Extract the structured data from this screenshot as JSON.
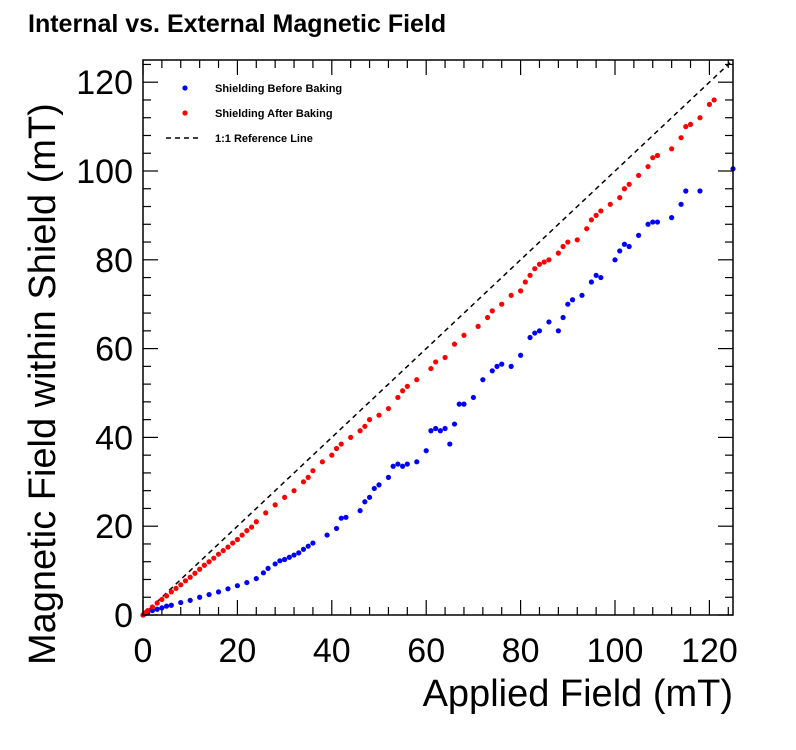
{
  "chart_data": {
    "type": "scatter",
    "title": "Internal vs. External  Magnetic Field",
    "xlabel": "Applied Field (mT)",
    "ylabel": "Magnetic Field within Shield (mT)",
    "xlim": [
      0,
      125
    ],
    "ylim": [
      0,
      125
    ],
    "xticks": [
      "0",
      "20",
      "40",
      "60",
      "80",
      "100",
      "120"
    ],
    "yticks": [
      "0",
      "20",
      "40",
      "60",
      "80",
      "100",
      "120"
    ],
    "grid": false,
    "legend_position": "top-left",
    "series": [
      {
        "name": "Shielding Before Baking",
        "color": "#0000ff",
        "marker": "circle",
        "x": [
          0,
          0.5,
          1,
          2,
          3,
          4,
          5,
          6,
          8,
          10,
          12,
          14,
          16,
          18,
          20,
          22,
          24,
          25.5,
          26.5,
          28,
          29,
          30,
          31,
          32,
          33,
          34,
          35,
          36,
          39,
          41,
          42,
          43,
          46,
          47,
          48,
          49,
          50,
          52,
          53,
          54,
          55,
          56,
          58,
          60,
          61,
          62,
          63,
          64,
          65,
          66,
          67,
          68,
          70,
          72,
          74,
          75,
          76,
          78,
          80,
          82,
          83,
          84,
          86,
          88,
          89,
          90,
          91,
          93,
          95,
          96,
          97,
          100,
          101,
          102,
          103,
          105,
          107,
          108,
          109,
          112,
          114,
          115,
          118,
          125
        ],
        "y": [
          0,
          0.3,
          0.5,
          1,
          1.3,
          1.6,
          2,
          2.2,
          2.8,
          3.3,
          4,
          4.6,
          5.2,
          5.9,
          6.6,
          7.3,
          8.2,
          9.5,
          10.5,
          11.5,
          12.2,
          12.5,
          13,
          13.5,
          14,
          14.8,
          15.5,
          16.2,
          18,
          19.5,
          21.8,
          22,
          23.5,
          25.5,
          26.5,
          28.5,
          29.3,
          31,
          33.5,
          34,
          33.5,
          34,
          34.5,
          37,
          41.5,
          42,
          41.5,
          42,
          38.5,
          43,
          47.5,
          47.5,
          49,
          53,
          55,
          56,
          56.5,
          56,
          58.5,
          62.5,
          63.5,
          64,
          66,
          64,
          67,
          70,
          71,
          72,
          75,
          76.5,
          76,
          80,
          82,
          83.5,
          83,
          85.5,
          88,
          88.5,
          88.5,
          89.5,
          92.5,
          95.5,
          95.5,
          100.5
        ]
      },
      {
        "name": "Shielding After Baking",
        "color": "#ff0000",
        "marker": "circle",
        "x": [
          0,
          0.5,
          1,
          2,
          3,
          4,
          5,
          6,
          7,
          8,
          9,
          10,
          11,
          12,
          13,
          14,
          15,
          16,
          17,
          18,
          19,
          20,
          21,
          22,
          23,
          24,
          26,
          28,
          30,
          32,
          34,
          35,
          36,
          38,
          40,
          41,
          42,
          44,
          46,
          47,
          48,
          50,
          52,
          54,
          55,
          56,
          58,
          61,
          62,
          64,
          66,
          68,
          71,
          73,
          74,
          76,
          78,
          80,
          81,
          82,
          83,
          84,
          85,
          86,
          88,
          89,
          90,
          92,
          94,
          95,
          96,
          97,
          99,
          101,
          102,
          103,
          105,
          107,
          108,
          109,
          112,
          114,
          115,
          116,
          118,
          120,
          121
        ],
        "y": [
          0,
          0.5,
          1,
          1.8,
          2.7,
          3.5,
          4.3,
          5.2,
          6,
          6.8,
          7.7,
          8.5,
          9.4,
          10.3,
          11.2,
          12,
          12.8,
          13.7,
          14.5,
          15.3,
          16.2,
          17,
          18,
          19,
          19.8,
          21,
          23,
          24.8,
          26.5,
          28,
          30,
          31,
          32.5,
          34.5,
          36,
          37.5,
          38.5,
          40,
          41.5,
          42.5,
          44,
          45,
          46.5,
          49,
          50.5,
          51.5,
          53,
          55.5,
          57,
          58,
          61,
          63,
          65,
          67,
          68.5,
          70,
          72,
          73,
          75,
          76.5,
          78,
          79,
          79.5,
          80,
          81.5,
          83,
          84,
          84.5,
          87,
          89,
          90,
          91,
          92.5,
          94,
          96,
          97,
          99,
          101,
          103,
          103.5,
          105,
          107.5,
          110,
          110.5,
          112,
          115,
          116
        ]
      },
      {
        "name": "1:1 Reference Line",
        "color": "#000000",
        "style": "dashed",
        "x": [
          0,
          125
        ],
        "y": [
          0,
          125
        ]
      }
    ]
  }
}
